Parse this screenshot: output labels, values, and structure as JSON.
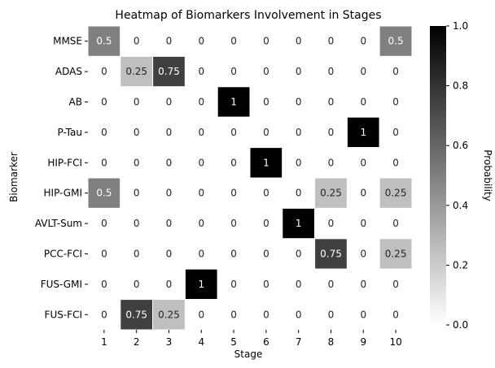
{
  "chart_data": {
    "type": "heatmap",
    "title": "Heatmap of Biomarkers Involvement in Stages",
    "xlabel": "Stage",
    "ylabel": "Biomarker",
    "x_categories": [
      "1",
      "2",
      "3",
      "4",
      "5",
      "6",
      "7",
      "8",
      "9",
      "10"
    ],
    "y_categories": [
      "MMSE",
      "ADAS",
      "AB",
      "P-Tau",
      "HIP-FCI",
      "HIP-GMI",
      "AVLT-Sum",
      "PCC-FCI",
      "FUS-GMI",
      "FUS-FCI"
    ],
    "values": [
      [
        0.5,
        0,
        0,
        0,
        0,
        0,
        0,
        0,
        0,
        0.5
      ],
      [
        0,
        0.25,
        0.75,
        0,
        0,
        0,
        0,
        0,
        0,
        0
      ],
      [
        0,
        0,
        0,
        0,
        1,
        0,
        0,
        0,
        0,
        0
      ],
      [
        0,
        0,
        0,
        0,
        0,
        0,
        0,
        0,
        1,
        0
      ],
      [
        0,
        0,
        0,
        0,
        0,
        1,
        0,
        0,
        0,
        0
      ],
      [
        0.5,
        0,
        0,
        0,
        0,
        0,
        0,
        0.25,
        0,
        0.25
      ],
      [
        0,
        0,
        0,
        0,
        0,
        0,
        1,
        0,
        0,
        0
      ],
      [
        0,
        0,
        0,
        0,
        0,
        0,
        0,
        0.75,
        0,
        0.25
      ],
      [
        0,
        0,
        0,
        1,
        0,
        0,
        0,
        0,
        0,
        0
      ],
      [
        0,
        0.75,
        0.25,
        0,
        0,
        0,
        0,
        0,
        0,
        0
      ]
    ],
    "cell_labels": [
      [
        "0.5",
        "0",
        "0",
        "0",
        "0",
        "0",
        "0",
        "0",
        "0",
        "0.5"
      ],
      [
        "0",
        "0.25",
        "0.75",
        "0",
        "0",
        "0",
        "0",
        "0",
        "0",
        "0"
      ],
      [
        "0",
        "0",
        "0",
        "0",
        "1",
        "0",
        "0",
        "0",
        "0",
        "0"
      ],
      [
        "0",
        "0",
        "0",
        "0",
        "0",
        "0",
        "0",
        "0",
        "1",
        "0"
      ],
      [
        "0",
        "0",
        "0",
        "0",
        "0",
        "1",
        "0",
        "0",
        "0",
        "0"
      ],
      [
        "0.5",
        "0",
        "0",
        "0",
        "0",
        "0",
        "0",
        "0.25",
        "0",
        "0.25"
      ],
      [
        "0",
        "0",
        "0",
        "0",
        "0",
        "0",
        "1",
        "0",
        "0",
        "0"
      ],
      [
        "0",
        "0",
        "0",
        "0",
        "0",
        "0",
        "0",
        "0.75",
        "0",
        "0.25"
      ],
      [
        "0",
        "0",
        "0",
        "1",
        "0",
        "0",
        "0",
        "0",
        "0",
        "0"
      ],
      [
        "0",
        "0.75",
        "0.25",
        "0",
        "0",
        "0",
        "0",
        "0",
        "0",
        "0"
      ]
    ],
    "colorbar": {
      "label": "Probability",
      "range": [
        0,
        1
      ],
      "ticks": [
        0.0,
        0.2,
        0.4,
        0.6,
        0.8,
        1.0
      ],
      "tick_labels": [
        "0.0",
        "0.2",
        "0.4",
        "0.6",
        "0.8",
        "1.0"
      ],
      "colormap": "Greys",
      "low_color": "#ffffff",
      "high_color": "#000000"
    },
    "grid": false,
    "cell_borders": true
  }
}
